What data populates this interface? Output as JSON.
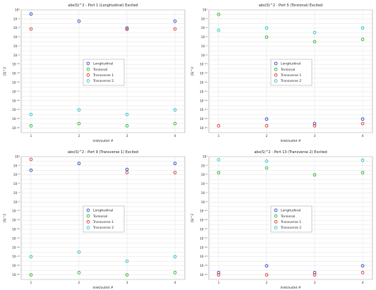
{
  "chart_data": [
    {
      "type": "scatter",
      "title": "abs(S)^2 - Port 1 (Longitudinal) Excited",
      "xlabel": "Inlet/outlet #",
      "ylabel": "|S|^2",
      "x": [
        1,
        2,
        3,
        4
      ],
      "yscale": "log",
      "ylim": [
        -26,
        1
      ],
      "grid": true,
      "legend_position": "center",
      "series": [
        {
          "name": "Longitudinal",
          "color": "#1f3fd0",
          "y_log10": [
            0.1,
            -1.5,
            -3.0,
            -1.5
          ]
        },
        {
          "name": "Torsional",
          "color": "#22b322",
          "y_log10": [
            -24.5,
            -24.0,
            -24.5,
            -24.0
          ]
        },
        {
          "name": "Transverse 1",
          "color": "#e0302a",
          "y_log10": [
            -3.2,
            -35,
            -3.3,
            -3.2
          ]
        },
        {
          "name": "Transverse 2",
          "color": "#1fc4c4",
          "y_log10": [
            -22.0,
            -21.0,
            -22.0,
            -21.0
          ]
        }
      ]
    },
    {
      "type": "scatter",
      "title": "abs(S)^2 - Port 5 (Torsional) Excited",
      "xlabel": "Inlet/outlet #",
      "ylabel": "|S|^2",
      "x": [
        1,
        2,
        3,
        4
      ],
      "yscale": "log",
      "ylim": [
        -26,
        1
      ],
      "grid": true,
      "legend_position": "center",
      "series": [
        {
          "name": "Longitudinal",
          "color": "#1f3fd0",
          "y_log10": [
            -35,
            -23.0,
            -24.0,
            -23.0
          ]
        },
        {
          "name": "Torsional",
          "color": "#22b322",
          "y_log10": [
            0.0,
            -5.0,
            -6.0,
            -5.5
          ]
        },
        {
          "name": "Transverse 1",
          "color": "#e0302a",
          "y_log10": [
            -24.5,
            -24.5,
            -24.5,
            -24.0
          ]
        },
        {
          "name": "Transverse 2",
          "color": "#1fc4c4",
          "y_log10": [
            -3.5,
            -3.0,
            -4.0,
            -3.0
          ]
        }
      ]
    },
    {
      "type": "scatter",
      "title": "abs(S)^2 - Port 9 (Transverse 1) Excited",
      "xlabel": "Inlet/outlet #",
      "ylabel": "|S|^2",
      "x": [
        1,
        2,
        3,
        4
      ],
      "yscale": "log",
      "ylim": [
        -26,
        1
      ],
      "grid": true,
      "legend_position": "center",
      "series": [
        {
          "name": "Longitudinal",
          "color": "#1f3fd0",
          "y_log10": [
            -2.0,
            -0.5,
            -1.8,
            -0.5
          ]
        },
        {
          "name": "Torsional",
          "color": "#22b322",
          "y_log10": [
            -25.0,
            -24.5,
            -25.0,
            -24.5
          ]
        },
        {
          "name": "Transverse 1",
          "color": "#e0302a",
          "y_log10": [
            0.4,
            -35,
            -2.5,
            -2.5
          ]
        },
        {
          "name": "Transverse 2",
          "color": "#1fc4c4",
          "y_log10": [
            -21.0,
            -20.0,
            -22.0,
            -21.0
          ]
        }
      ]
    },
    {
      "type": "scatter",
      "title": "abs(S)^2 - Port 13 (Transverse 2) Excited",
      "xlabel": "Inlet/outlet #",
      "ylabel": "|S|^2",
      "x": [
        1,
        2,
        3,
        4
      ],
      "yscale": "log",
      "ylim": [
        -26,
        1
      ],
      "grid": true,
      "legend_position": "center",
      "series": [
        {
          "name": "Longitudinal",
          "color": "#1f3fd0",
          "y_log10": [
            -24.5,
            -23.0,
            -24.5,
            -23.0
          ]
        },
        {
          "name": "Torsional",
          "color": "#22b322",
          "y_log10": [
            -2.5,
            -1.5,
            -3.0,
            -2.5
          ]
        },
        {
          "name": "Transverse 1",
          "color": "#e0302a",
          "y_log10": [
            -25.0,
            -25.0,
            -25.0,
            -24.5
          ]
        },
        {
          "name": "Transverse 2",
          "color": "#1fc4c4",
          "y_log10": [
            0.3,
            0.0,
            -35,
            0.2
          ]
        }
      ]
    }
  ]
}
